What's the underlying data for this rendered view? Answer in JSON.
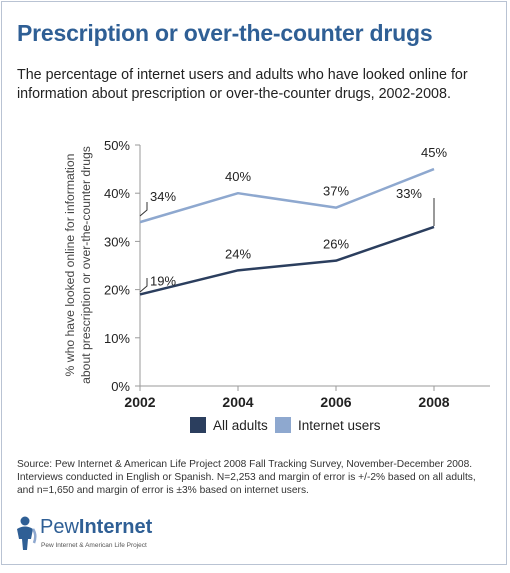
{
  "header": {
    "title": "Prescription or over-the-counter drugs",
    "subtitle": "The percentage of internet users and adults who have looked online for information about prescription or over-the-counter drugs, 2002-2008."
  },
  "chart_data": {
    "type": "line",
    "x": [
      "2002",
      "2004",
      "2006",
      "2008"
    ],
    "series": [
      {
        "name": "All adults",
        "values": [
          19,
          24,
          26,
          33
        ],
        "labels": [
          "19%",
          "24%",
          "26%",
          "33%"
        ],
        "color": "#2b3e5e"
      },
      {
        "name": "Internet users",
        "values": [
          34,
          40,
          37,
          45
        ],
        "labels": [
          "34%",
          "40%",
          "37%",
          "45%"
        ],
        "color": "#8ea8cf"
      }
    ],
    "ylabel_lines": [
      "% who have looked online for information",
      "about prescription or over-the-counter drugs"
    ],
    "yticks": [
      "0%",
      "10%",
      "20%",
      "30%",
      "40%",
      "50%"
    ],
    "ylim": [
      0,
      50
    ],
    "grid": false,
    "legend": "bottom"
  },
  "footer": {
    "source_lines": [
      "Source:  Pew Internet & American Life Project 2008 Fall Tracking Survey, November-December 2008.",
      "Interviews conducted in English or Spanish.   N=2,253 and margin of error is +/-2% based on all adults,",
      "and n=1,650 and margin of error is ±3% based on internet users."
    ]
  },
  "logo": {
    "word_light": "Pew",
    "word_bold": "Internet",
    "tagline": "Pew Internet & American Life Project",
    "color": "#2f5f95"
  }
}
